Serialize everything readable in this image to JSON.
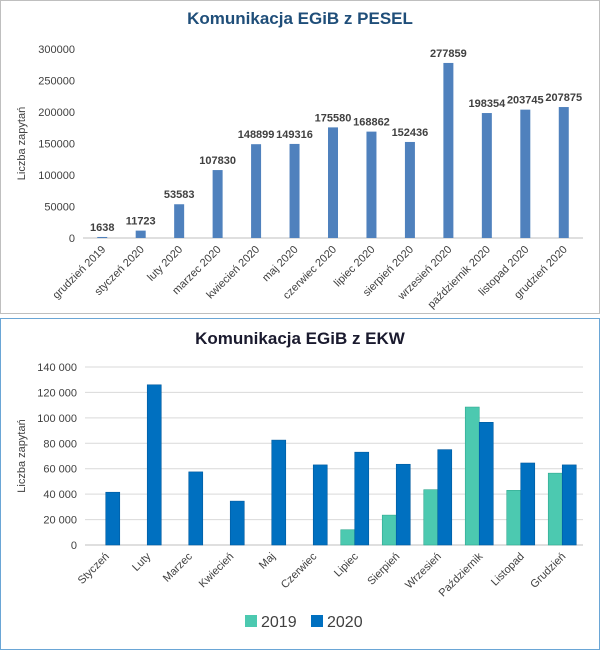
{
  "chart_data": [
    {
      "type": "bar",
      "title": "Komunikacja EGiB z PESEL",
      "ylabel": "Liczba zapytań",
      "xlabel": "",
      "ylim": [
        0,
        300000
      ],
      "yticks": [
        "0",
        "50000",
        "100000",
        "150000",
        "200000",
        "250000",
        "300000"
      ],
      "categories": [
        "grudzień 2019",
        "styczeń 2020",
        "luty 2020",
        "marzec 2020",
        "kwiecień 2020",
        "maj 2020",
        "czerwiec 2020",
        "lipiec 2020",
        "sierpień 2020",
        "wrzesień 2020",
        "październik 2020",
        "listopad 2020",
        "grudzień 2020"
      ],
      "values": [
        1638,
        11723,
        53583,
        107830,
        148899,
        149316,
        175580,
        168862,
        152436,
        277859,
        198354,
        203745,
        207875
      ],
      "value_labels": [
        "1638",
        "11723",
        "53583",
        "107830",
        "148899",
        "149316",
        "175580",
        "168862",
        "152436",
        "277859",
        "198354",
        "203745",
        "207875"
      ],
      "grid": false,
      "colors": {
        "bar": "#4f81bd"
      }
    },
    {
      "type": "bar",
      "title": "Komunikacja EGiB z EKW",
      "ylabel": "Liczba zapytań",
      "xlabel": "",
      "ylim": [
        0,
        140000
      ],
      "yticks": [
        "0",
        "20 000",
        "40 000",
        "60 000",
        "80 000",
        "100 000",
        "120 000",
        "140 000"
      ],
      "categories": [
        "Styczeń",
        "Luty",
        "Marzec",
        "Kwiecień",
        "Maj",
        "Czerwiec",
        "Lipiec",
        "Sierpień",
        "Wrzesień",
        "Październik",
        "Listopad",
        "Grudzień"
      ],
      "series": [
        {
          "name": "2019",
          "values": [
            null,
            null,
            null,
            null,
            null,
            null,
            12000,
            23500,
            43500,
            108500,
            43000,
            56500
          ]
        },
        {
          "name": "2020",
          "values": [
            41500,
            126000,
            57500,
            34500,
            82500,
            63000,
            73000,
            63500,
            75000,
            96500,
            64500,
            63000
          ]
        }
      ],
      "grid": true,
      "legend": "bottom",
      "colors": {
        "2019": "#4cc9b0",
        "2020": "#0070c0"
      }
    }
  ]
}
